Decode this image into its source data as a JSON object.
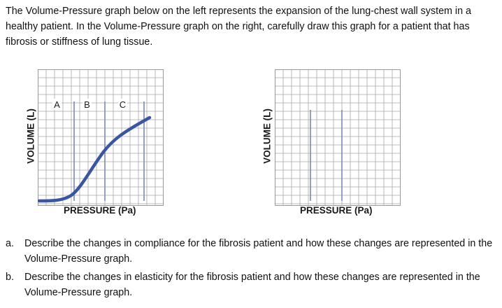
{
  "intro": "The Volume-Pressure graph below on the left represents the expansion of the lung-chest wall system in a healthy patient.  In the Volume-Pressure graph on the right, carefully draw this graph for a patient that has fibrosis or stiffness of lung tissue.",
  "graphs": {
    "left": {
      "ylabel": "VOLUME (L)",
      "xlabel": "PRESSURE (Pa)",
      "markers": [
        "A",
        "B",
        "C"
      ]
    },
    "right": {
      "ylabel": "VOLUME (L)",
      "xlabel": "PRESSURE (Pa)"
    }
  },
  "colors": {
    "grid": "#a8a8a8",
    "vertical_markers": "#7b88b8",
    "curve": "#3b56a0"
  },
  "questions": [
    {
      "letter": "a.",
      "text": "Describe the changes in compliance for the fibrosis patient and how these changes are represented in the Volume-Pressure graph."
    },
    {
      "letter": "b.",
      "text": "Describe the changes in elasticity for the fibrosis patient and how these changes are represented in the Volume-Pressure graph."
    }
  ]
}
